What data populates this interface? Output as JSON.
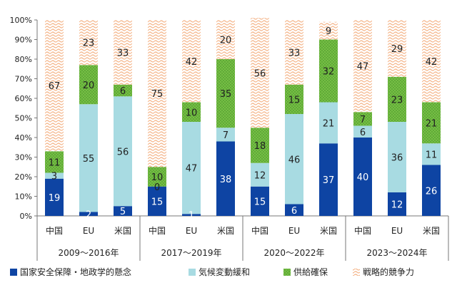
{
  "chart_data": {
    "type": "bar",
    "stacked": true,
    "percent": true,
    "ylim": [
      0,
      100
    ],
    "yticks": [
      "0%",
      "10%",
      "20%",
      "30%",
      "40%",
      "50%",
      "60%",
      "70%",
      "80%",
      "90%",
      "100%"
    ],
    "groups": [
      {
        "label": "2009～2016年",
        "categories": [
          "中国",
          "EU",
          "米国"
        ]
      },
      {
        "label": "2017～2019年",
        "categories": [
          "中国",
          "EU",
          "米国"
        ]
      },
      {
        "label": "2020～2022年",
        "categories": [
          "中国",
          "EU",
          "米国"
        ]
      },
      {
        "label": "2023～2024年",
        "categories": [
          "中国",
          "EU",
          "米国"
        ]
      }
    ],
    "series": [
      {
        "name": "国家安全保障・地政学的懸念",
        "color": "#0e44a3",
        "pattern": "solid",
        "values": [
          19,
          2,
          5,
          15,
          1,
          38,
          15,
          6,
          37,
          40,
          12,
          26
        ]
      },
      {
        "name": "気候変動緩和",
        "color": "#a8dbe2",
        "pattern": "solid",
        "values": [
          3,
          55,
          56,
          0,
          47,
          7,
          12,
          46,
          21,
          6,
          36,
          11
        ]
      },
      {
        "name": "供給確保",
        "color": "#76bf45",
        "pattern": "dots",
        "values": [
          11,
          20,
          6,
          10,
          10,
          35,
          18,
          15,
          32,
          7,
          23,
          21
        ]
      },
      {
        "name": "戦略的競争力",
        "color": "#f4b183",
        "pattern": "wave",
        "values": [
          67,
          23,
          33,
          75,
          42,
          20,
          56,
          33,
          9,
          47,
          29,
          42
        ]
      }
    ],
    "grid": false,
    "legend": "bottom"
  }
}
